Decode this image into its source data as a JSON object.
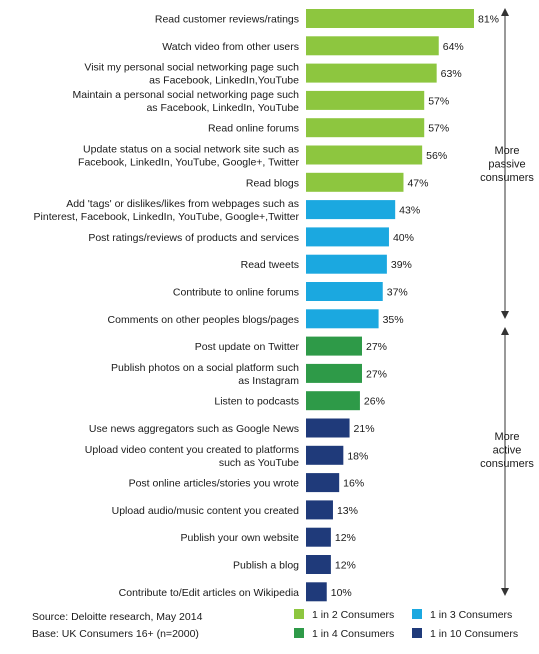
{
  "chart_data": {
    "type": "bar",
    "orientation": "horizontal",
    "categories": [
      [
        "Read customer reviews/ratings"
      ],
      [
        "Watch video from other users"
      ],
      [
        "Visit my personal social networking page such",
        "as Facebook, LinkedIn,YouTube"
      ],
      [
        "Maintain a personal social networking page such",
        "as Facebook, LinkedIn, YouTube"
      ],
      [
        "Read online forums"
      ],
      [
        "Update status on a social network site such as",
        "Facebook, LinkedIn, YouTube, Google+, Twitter"
      ],
      [
        "Read blogs"
      ],
      [
        "Add 'tags' or dislikes/likes from webpages such as",
        "Pinterest, Facebook, LinkedIn, YouTube, Google+,Twitter"
      ],
      [
        "Post ratings/reviews of products and services"
      ],
      [
        "Read tweets"
      ],
      [
        "Contribute to online forums"
      ],
      [
        "Comments on other peoples blogs/pages"
      ],
      [
        "Post update on Twitter"
      ],
      [
        "Publish photos on a social platform such",
        "as Instagram"
      ],
      [
        "Listen to podcasts"
      ],
      [
        "Use news aggregators such as Google News"
      ],
      [
        "Upload video content you created to platforms",
        "such as YouTube"
      ],
      [
        "Post online articles/stories you wrote"
      ],
      [
        "Upload audio/music content you created"
      ],
      [
        "Publish your own website"
      ],
      [
        "Publish a blog"
      ],
      [
        "Contribute to/Edit articles on Wikipedia"
      ]
    ],
    "values": [
      81,
      64,
      63,
      57,
      57,
      56,
      47,
      43,
      40,
      39,
      37,
      35,
      27,
      27,
      26,
      21,
      18,
      16,
      13,
      12,
      12,
      10
    ],
    "value_suffix": "%",
    "groups": [
      0,
      0,
      0,
      0,
      0,
      0,
      0,
      1,
      1,
      1,
      1,
      1,
      2,
      2,
      2,
      3,
      3,
      3,
      3,
      3,
      3,
      3
    ],
    "legend": [
      {
        "label": "1 in 2 Consumers",
        "color": "#8dc63f"
      },
      {
        "label": "1 in 3 Consumers",
        "color": "#1ba8e0"
      },
      {
        "label": "1 in 4 Consumers",
        "color": "#2e9a48"
      },
      {
        "label": "1 in 10 Consumers",
        "color": "#1f3a7a"
      }
    ],
    "legend_placement": "bottom-right",
    "xlim": [
      0,
      81
    ],
    "grid": false,
    "annotations": {
      "passive": [
        "More",
        "passive",
        "consumers"
      ],
      "active": [
        "More",
        "active",
        "consumers"
      ]
    }
  },
  "footer": {
    "source": "Source: Deloitte research, May 2014",
    "base": "Base: UK Consumers 16+ (n=2000)"
  }
}
